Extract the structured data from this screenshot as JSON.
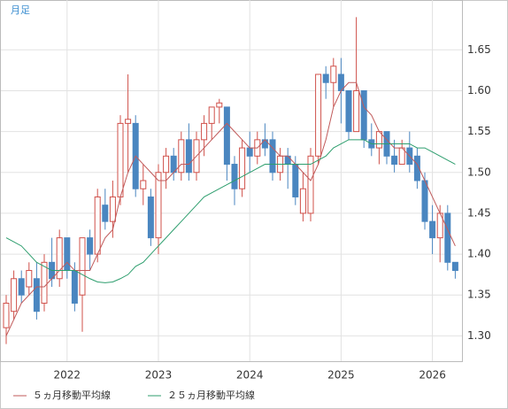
{
  "chart_data": {
    "type": "candlestick",
    "timeframe_label": "月足",
    "categories": [
      null,
      null,
      null,
      null,
      null,
      null,
      null,
      null,
      "2022",
      null,
      null,
      null,
      null,
      null,
      null,
      null,
      null,
      null,
      null,
      null,
      "2023",
      null,
      null,
      null,
      null,
      null,
      null,
      null,
      null,
      null,
      null,
      null,
      "2024",
      null,
      null,
      null,
      null,
      null,
      null,
      null,
      null,
      null,
      null,
      null,
      "2025",
      null,
      null,
      null,
      null,
      null,
      null,
      null,
      null,
      null,
      null,
      null,
      "2026",
      null,
      null,
      null
    ],
    "open": [
      1.31,
      1.33,
      1.37,
      1.36,
      1.37,
      1.34,
      1.39,
      1.37,
      1.42,
      1.38,
      1.35,
      1.42,
      1.4,
      1.46,
      1.44,
      1.47,
      1.56,
      1.56,
      1.48,
      1.47,
      1.42,
      1.5,
      1.52,
      1.5,
      1.54,
      1.5,
      1.54,
      1.56,
      1.58,
      1.58,
      1.51,
      1.48,
      1.53,
      1.52,
      1.54,
      1.54,
      1.5,
      1.52,
      1.51,
      1.45,
      1.45,
      1.52,
      1.62,
      1.61,
      1.62,
      1.6,
      1.55,
      1.6,
      1.54,
      1.53,
      1.55,
      1.52,
      1.51,
      1.53,
      1.52,
      1.49,
      1.44,
      1.42,
      1.45,
      1.39
    ],
    "high": [
      1.35,
      1.38,
      1.38,
      1.39,
      1.39,
      1.4,
      1.42,
      1.43,
      1.42,
      1.39,
      1.42,
      1.43,
      1.48,
      1.48,
      1.49,
      1.57,
      1.62,
      1.57,
      1.51,
      1.48,
      1.51,
      1.53,
      1.53,
      1.55,
      1.56,
      1.55,
      1.57,
      1.58,
      1.59,
      1.58,
      1.52,
      1.54,
      1.55,
      1.55,
      1.56,
      1.55,
      1.53,
      1.53,
      1.52,
      1.5,
      1.53,
      1.62,
      1.63,
      1.64,
      1.64,
      1.6,
      1.69,
      1.6,
      1.56,
      1.55,
      1.55,
      1.54,
      1.54,
      1.55,
      1.53,
      1.5,
      1.46,
      1.46,
      1.46,
      1.39
    ],
    "low": [
      1.29,
      1.32,
      1.34,
      1.35,
      1.32,
      1.33,
      1.36,
      1.36,
      1.37,
      1.33,
      1.305,
      1.38,
      1.39,
      1.43,
      1.42,
      1.46,
      1.5,
      1.47,
      1.46,
      1.41,
      1.4,
      1.48,
      1.49,
      1.49,
      1.49,
      1.49,
      1.52,
      1.54,
      1.56,
      1.49,
      1.46,
      1.47,
      1.5,
      1.51,
      1.52,
      1.49,
      1.49,
      1.48,
      1.46,
      1.44,
      1.44,
      1.51,
      1.59,
      1.58,
      1.56,
      1.54,
      1.55,
      1.53,
      1.52,
      1.51,
      1.51,
      1.5,
      1.51,
      1.5,
      1.48,
      1.43,
      1.4,
      1.39,
      1.38,
      1.37
    ],
    "close": [
      1.34,
      1.37,
      1.35,
      1.38,
      1.33,
      1.39,
      1.37,
      1.42,
      1.38,
      1.34,
      1.42,
      1.4,
      1.47,
      1.44,
      1.47,
      1.56,
      1.565,
      1.48,
      1.49,
      1.42,
      1.5,
      1.52,
      1.5,
      1.54,
      1.5,
      1.54,
      1.56,
      1.58,
      1.585,
      1.51,
      1.48,
      1.53,
      1.52,
      1.54,
      1.53,
      1.5,
      1.52,
      1.51,
      1.47,
      1.48,
      1.52,
      1.62,
      1.61,
      1.63,
      1.6,
      1.55,
      1.6,
      1.54,
      1.53,
      1.55,
      1.52,
      1.51,
      1.53,
      1.51,
      1.49,
      1.44,
      1.42,
      1.45,
      1.39,
      1.38
    ],
    "up_color": "#d0504a",
    "down_color": "#4a86c0",
    "lines": [
      {
        "name": "５ヵ月移動平均線",
        "color": "#c05a5a",
        "values": [
          1.3,
          1.32,
          1.34,
          1.35,
          1.36,
          1.36,
          1.37,
          1.38,
          1.39,
          1.38,
          1.38,
          1.38,
          1.4,
          1.42,
          1.43,
          1.47,
          1.5,
          1.52,
          1.51,
          1.5,
          1.49,
          1.49,
          1.5,
          1.51,
          1.51,
          1.52,
          1.53,
          1.54,
          1.55,
          1.56,
          1.55,
          1.54,
          1.53,
          1.53,
          1.54,
          1.53,
          1.52,
          1.52,
          1.51,
          1.5,
          1.49,
          1.51,
          1.54,
          1.58,
          1.6,
          1.61,
          1.61,
          1.58,
          1.57,
          1.55,
          1.54,
          1.53,
          1.53,
          1.52,
          1.51,
          1.49,
          1.47,
          1.45,
          1.43,
          1.41
        ]
      },
      {
        "name": "２５ヵ月移動平均線",
        "color": "#2e9e6e",
        "values": [
          1.42,
          1.415,
          1.41,
          1.4,
          1.39,
          1.385,
          1.38,
          1.38,
          1.38,
          1.38,
          1.375,
          1.37,
          1.366,
          1.365,
          1.366,
          1.37,
          1.375,
          1.385,
          1.39,
          1.4,
          1.41,
          1.42,
          1.43,
          1.44,
          1.45,
          1.46,
          1.47,
          1.475,
          1.48,
          1.485,
          1.49,
          1.495,
          1.5,
          1.505,
          1.51,
          1.51,
          1.51,
          1.51,
          1.51,
          1.51,
          1.51,
          1.515,
          1.52,
          1.53,
          1.535,
          1.54,
          1.54,
          1.54,
          1.535,
          1.535,
          1.535,
          1.535,
          1.535,
          1.535,
          1.53,
          1.53,
          1.525,
          1.52,
          1.515,
          1.51
        ]
      }
    ],
    "ylim": [
      1.269,
      1.711
    ],
    "yticks": [
      {
        "value": 1.3,
        "label": "1.30"
      },
      1.35,
      {
        "value": 1.4,
        "label": "1.40"
      },
      1.45,
      {
        "value": 1.5,
        "label": "1.50"
      },
      1.55,
      {
        "value": 1.6,
        "label": "1.60"
      },
      1.65
    ],
    "grid": true
  }
}
